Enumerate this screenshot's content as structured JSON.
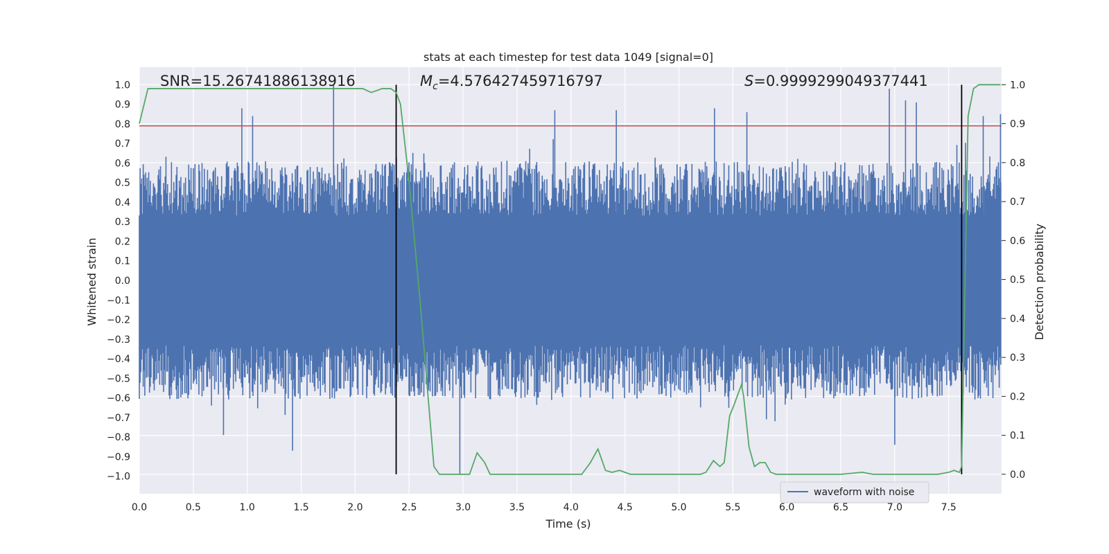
{
  "chart_data": {
    "type": "line",
    "title": "stats at each timestep for test data 1049 [signal=0]",
    "xlabel": "Time (s)",
    "ylabel": "Whitened strain",
    "ylabel_right": "Detection probability",
    "xlim": [
      0.0,
      7.99
    ],
    "ylim": [
      -1.09,
      1.09
    ],
    "ylim_right": [
      -0.05,
      1.045
    ],
    "x_ticks": [
      "0.0",
      "0.5",
      "1.0",
      "1.5",
      "2.0",
      "2.5",
      "3.0",
      "3.5",
      "4.0",
      "4.5",
      "5.0",
      "5.5",
      "6.0",
      "6.5",
      "7.0",
      "7.5"
    ],
    "x_tick_values": [
      0.0,
      0.5,
      1.0,
      1.5,
      2.0,
      2.5,
      3.0,
      3.5,
      4.0,
      4.5,
      5.0,
      5.5,
      6.0,
      6.5,
      7.0,
      7.5
    ],
    "y_ticks": [
      "1.0",
      "0.9",
      "0.8",
      "0.7",
      "0.6",
      "0.5",
      "0.4",
      "0.3",
      "0.2",
      "0.1",
      "0.0",
      "−0.1",
      "−0.2",
      "−0.3",
      "−0.4",
      "−0.5",
      "−0.6",
      "−0.7",
      "−0.8",
      "−0.9",
      "−1.0"
    ],
    "y_tick_values": [
      1.0,
      0.9,
      0.8,
      0.7,
      0.6,
      0.5,
      0.4,
      0.3,
      0.2,
      0.1,
      0.0,
      -0.1,
      -0.2,
      -0.3,
      -0.4,
      -0.5,
      -0.6,
      -0.7,
      -0.8,
      -0.9,
      -1.0
    ],
    "y_ticks_right": [
      "1.0",
      "0.9",
      "0.8",
      "0.7",
      "0.6",
      "0.5",
      "0.4",
      "0.3",
      "0.2",
      "0.1",
      "0.0"
    ],
    "y_tick_values_right": [
      1.0,
      0.9,
      0.8,
      0.7,
      0.6,
      0.5,
      0.4,
      0.3,
      0.2,
      0.1,
      0.0
    ],
    "annotations": {
      "snr": "SNR=15.26741886138916",
      "mc_symbol": "M",
      "mc_sub": "c",
      "mc_value": "=4.576427459716797",
      "s_symbol": "S",
      "s_value": "=0.9999299049377441"
    },
    "threshold_line": {
      "y": 0.79,
      "color": "#c44e52"
    },
    "vertical_markers": [
      2.38,
      7.62
    ],
    "waveform": {
      "name": "waveform with noise",
      "color": "#4c72b0",
      "core_amplitude": 0.6,
      "sample_count": 1100,
      "spike_x": [
        0.95,
        1.05,
        1.8,
        3.85,
        4.42,
        5.33,
        5.63,
        6.95,
        7.1,
        7.2,
        7.82,
        7.98,
        0.78,
        1.42,
        2.97,
        7.0
      ],
      "spike_y": [
        0.88,
        0.84,
        1.0,
        0.87,
        0.87,
        0.88,
        0.86,
        0.98,
        0.92,
        0.91,
        0.84,
        0.85,
        -0.79,
        -0.87,
        -0.99,
        -0.84
      ]
    },
    "series": [
      {
        "name": "detection probability",
        "axis": "right",
        "color": "#55a868",
        "x": [
          0.0,
          0.08,
          0.2,
          0.5,
          1.0,
          1.5,
          2.0,
          2.07,
          2.15,
          2.25,
          2.33,
          2.38,
          2.42,
          2.5,
          2.6,
          2.73,
          2.78,
          2.85,
          3.0,
          3.06,
          3.13,
          3.2,
          3.25,
          3.3,
          3.5,
          3.8,
          4.1,
          4.18,
          4.25,
          4.32,
          4.38,
          4.45,
          4.55,
          5.0,
          5.2,
          5.25,
          5.32,
          5.38,
          5.42,
          5.47,
          5.5,
          5.58,
          5.6,
          5.65,
          5.7,
          5.75,
          5.8,
          5.85,
          5.9,
          5.95,
          6.1,
          6.5,
          6.7,
          6.8,
          7.0,
          7.4,
          7.5,
          7.55,
          7.6,
          7.62,
          7.68,
          7.73,
          7.78,
          7.85,
          7.98
        ],
        "y": [
          0.9,
          0.99,
          0.99,
          0.99,
          0.99,
          0.99,
          0.99,
          0.99,
          0.98,
          0.99,
          0.99,
          0.98,
          0.95,
          0.75,
          0.45,
          0.02,
          0.0,
          0.0,
          0.0,
          0.0,
          0.055,
          0.03,
          0.0,
          0.0,
          0.0,
          0.0,
          0.0,
          0.03,
          0.065,
          0.01,
          0.005,
          0.01,
          0.0,
          0.0,
          0.0,
          0.005,
          0.035,
          0.02,
          0.03,
          0.15,
          0.17,
          0.23,
          0.2,
          0.07,
          0.02,
          0.03,
          0.03,
          0.005,
          0.0,
          0.0,
          0.0,
          0.0,
          0.005,
          0.0,
          0.0,
          0.0,
          0.005,
          0.01,
          0.005,
          0.02,
          0.92,
          0.99,
          1.0,
          1.0,
          1.0
        ]
      }
    ],
    "legend": {
      "label": "waveform with noise",
      "placement": "lower center-right"
    }
  }
}
